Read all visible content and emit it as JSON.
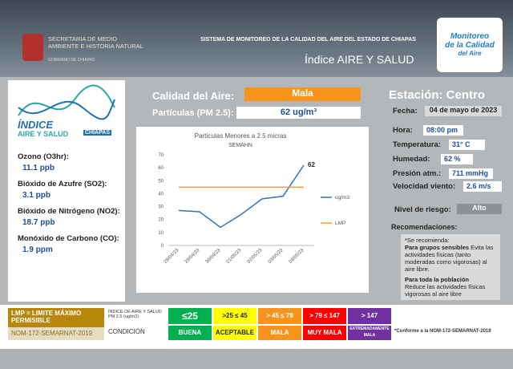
{
  "header": {
    "agency": "SECRETARÍA DE MEDIO AMBIENTE E HISTORIA NATURAL",
    "government": "GOBIERNO DE CHIAPAS",
    "system": "SISTEMA DE MONITOREO DE LA CALIDAD DEL AIRE DEL ESTADO DE CHIAPAS",
    "title": "Índice AIRE Y SALUD",
    "logo": [
      "Monitoreo",
      "de la Calidad",
      "del Aire"
    ]
  },
  "index_logo": {
    "line1": "ÍNDICE",
    "line2": "AIRE Y SALUD",
    "state": "CHIAPAS"
  },
  "pollutants": [
    {
      "label": "Ozono (O3hr):",
      "value": "11.1 ppb"
    },
    {
      "label": "Bióxido de Azufre (SO2):",
      "value": "3.1 ppb"
    },
    {
      "label": "Bióxido de Nitrógeno (NO2):",
      "value": "18.7 ppb"
    },
    {
      "label": "Monóxido de Carbono (CO):",
      "value": "1.9 ppm"
    }
  ],
  "quality": {
    "label": "Calidad del Aire:",
    "value": "Mala",
    "pm_label": "Partículas (PM 2.5):",
    "pm_value": "62 ug/m³"
  },
  "station": {
    "label": "Estación: Centro",
    "fields": [
      {
        "label": "Fecha:",
        "value": "04 de mayo de 2023"
      },
      {
        "label": "Hora:",
        "value": "08:00 pm"
      },
      {
        "label": "Temperatura:",
        "value": "31° C"
      },
      {
        "label": "Humedad:",
        "value": "62 %"
      },
      {
        "label": "Presión atm.:",
        "value": "711 mmHg"
      },
      {
        "label": "Velocidad viento:",
        "value": "2.6 m/s"
      }
    ],
    "risk_label": "Nivel de riesgo:",
    "risk": "Alto"
  },
  "recommendations": {
    "label": "Recomendaciones:",
    "intro": "*Se recomienda:",
    "group1": "Para grupos sensibles",
    "text1": "Evita las actividades físicas (tanto moderadas como vigorosas) al aire libre.",
    "group2": "Para toda la población",
    "text2": "Reduce las actividades físicas vigorosas al aire libre"
  },
  "legend_table": {
    "lmp": "LMP = LIMITE MÁXIMO PERMISIBLE",
    "nom": "NOM-172-SEMARNAT-2019",
    "index_label": "ÍNDICE DE AIRE Y SALUD PM 2.5 (ug/m3)",
    "condition_label": "CONDICIÓN",
    "levels": [
      {
        "range": "≤25",
        "condition": "BUENA",
        "color": "#00b050"
      },
      {
        "range": ">25 ≤ 45",
        "condition": "ACEPTABLE",
        "color": "#ffff00"
      },
      {
        "range": "> 45 ≤ 79",
        "condition": "MALA",
        "color": "#f7941d"
      },
      {
        "range": "> 79 ≤ 147",
        "condition": "MUY MALA",
        "color": "#ff0000"
      },
      {
        "range": "> 147",
        "condition": "EXTREMADAMENTE MALA",
        "color": "#7030a0"
      }
    ],
    "note": "*Conforme a la NOM-172-SEMARNAT-2019"
  },
  "chart_data": {
    "type": "line",
    "title": "Partículas Menores a 2.5 micras",
    "subtitle": "SEMAHN",
    "categories": [
      "28/04/23",
      "29/04/23",
      "30/04/23",
      "01/05/23",
      "02/05/23",
      "03/05/23",
      "04/05/23"
    ],
    "series": [
      {
        "name": "ug/m3",
        "color": "#2e75b6",
        "values": [
          27,
          26,
          14,
          24,
          36,
          38,
          62
        ]
      },
      {
        "name": "LMP",
        "color": "#f4a21d",
        "values": [
          45,
          45,
          45,
          45,
          45,
          45,
          45
        ]
      }
    ],
    "ylim": [
      0,
      70
    ],
    "yticks": [
      0,
      10,
      20,
      30,
      40,
      50,
      60,
      70
    ],
    "grid": false,
    "legend": "right"
  }
}
